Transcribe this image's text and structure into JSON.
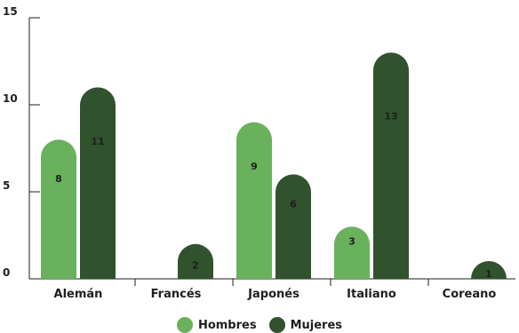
{
  "chart_data": {
    "type": "bar",
    "categories": [
      "Alemán",
      "Francés",
      "Japonés",
      "Italiano",
      "Coreano"
    ],
    "series": [
      {
        "name": "Hombres",
        "values": [
          8,
          0,
          9,
          3,
          0
        ],
        "color": "#6ab15e"
      },
      {
        "name": "Mujeres",
        "values": [
          11,
          2,
          6,
          13,
          1
        ],
        "color": "#30522d"
      }
    ],
    "yticks": [
      0,
      5,
      10,
      15
    ],
    "ylim": [
      0,
      15
    ],
    "legend_position": "bottom-center",
    "grid": false
  }
}
